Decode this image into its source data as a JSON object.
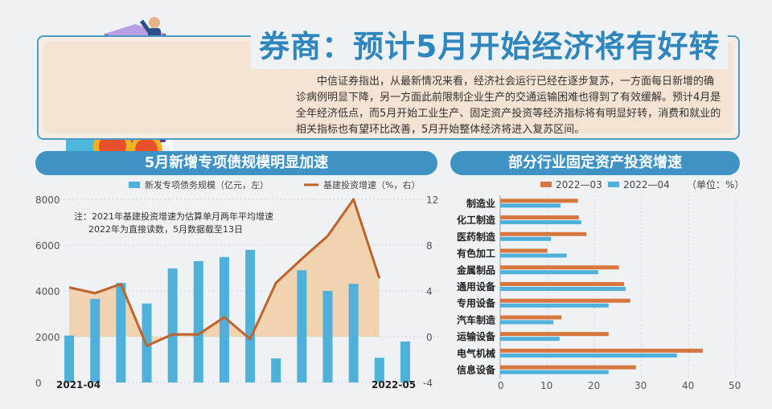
{
  "headline": "券商：预计5月开始经济将有好转",
  "paragraph": "中信证券指出，从最新情况来看，经济社会运行已经在逐步复苏，一方面每日新增的确诊病例明显下降，另一方面此前限制企业生产的交通运输困难也得到了有效缓解。预计4月是全年经济低点，而5月开始工业生产、固定资产投资等经济指标将有明显好转，消费和就业的相关指标也有望环比改善，5月开始整体经济将进入复苏区间。",
  "colors": {
    "bar_blue": "#4fb1d9",
    "line_brown": "#c0622b",
    "area_fill": "#f2c89a",
    "bar_orange": "#d5773f",
    "banner": "#3f93c4"
  },
  "chart_data": [
    {
      "type": "bar+line",
      "title": "5月新增专项债规模明显加速",
      "series": [
        {
          "name": "新发专项债务规模（亿元，左）",
          "axis": "left",
          "type": "bar",
          "values": [
            2050,
            3650,
            4350,
            3450,
            4980,
            5300,
            5480,
            5790,
            1050,
            4900,
            4000,
            4310,
            1080,
            1790
          ]
        },
        {
          "name": "基建投资增速（%，右）",
          "axis": "right",
          "type": "line-area",
          "values": [
            4.3,
            3.8,
            4.6,
            -0.8,
            0.2,
            0.2,
            1.7,
            -0.2,
            4.7,
            6.8,
            8.8,
            12.0,
            5.1
          ]
        }
      ],
      "x_start_label": "2021-04",
      "x_end_label": "2022-05",
      "left_ticks": [
        "0",
        "2000",
        "4000",
        "6000",
        "8000"
      ],
      "right_ticks": [
        "-4",
        "0",
        "4",
        "8",
        "12"
      ],
      "ylim_left": [
        0,
        8000
      ],
      "ylim_right": [
        -4,
        12
      ],
      "note_lines": [
        "注：2021年基建投资增速为估算单月两年平均增速",
        "2022年为直接读数，5月数据截至13日"
      ]
    },
    {
      "type": "bar",
      "orientation": "horizontal",
      "title": "部分行业固定资产投资增速",
      "unit": "（单位：%）",
      "categories": [
        "制造业",
        "化工制造",
        "医药制造",
        "有色加工",
        "金属制品",
        "通用设备",
        "专用设备",
        "汽车制造",
        "运输设备",
        "电气机械",
        "信息设备"
      ],
      "series": [
        {
          "name": "2022—03",
          "values": [
            16.5,
            16.7,
            18.3,
            10.0,
            25.2,
            26.3,
            27.6,
            13.0,
            23.0,
            43.0,
            28.8
          ]
        },
        {
          "name": "2022—04",
          "values": [
            12.8,
            17.2,
            10.8,
            14.1,
            20.8,
            26.6,
            23.0,
            11.3,
            12.6,
            37.5,
            23.0
          ]
        }
      ],
      "x_ticks": [
        "0",
        "10",
        "20",
        "30",
        "40",
        "50"
      ],
      "xlim": [
        0,
        50
      ]
    }
  ]
}
